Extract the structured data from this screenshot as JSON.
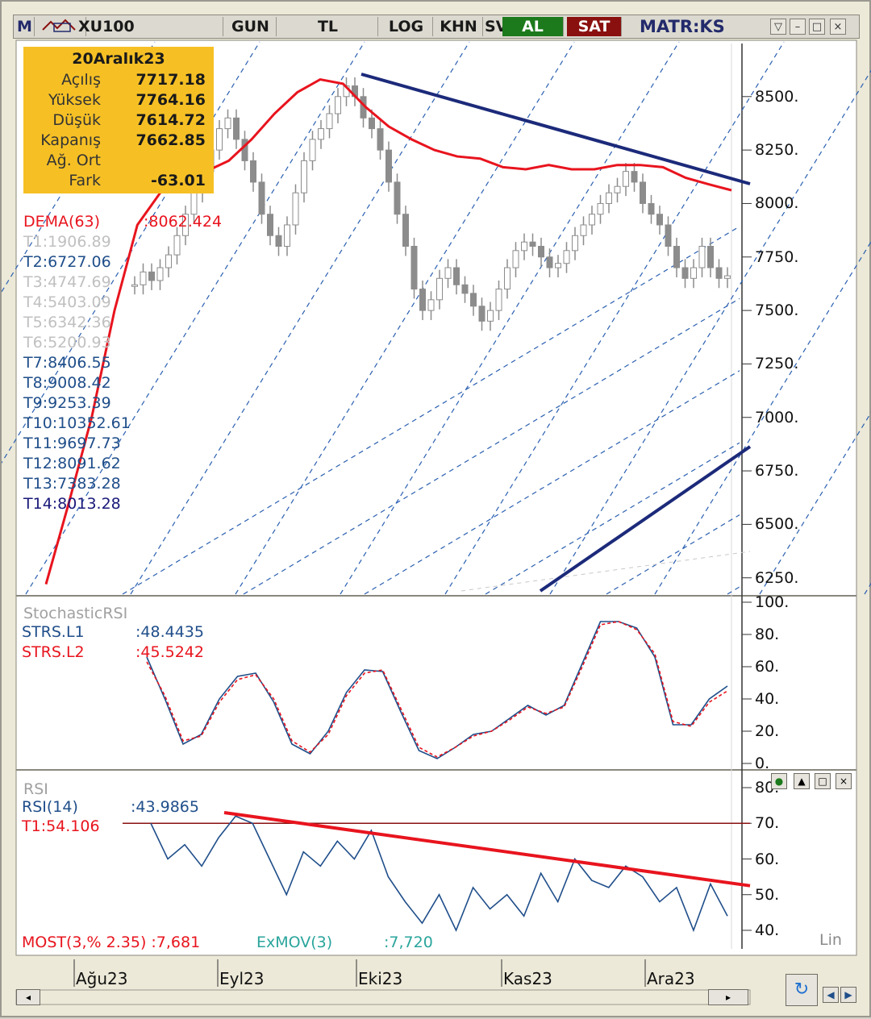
{
  "toolbar": {
    "logo": "M",
    "symbol": "XU100",
    "period": "GUN",
    "currency": "TL",
    "log": "LOG",
    "khn": "KHN",
    "sv": "SV",
    "buy": "AL",
    "sell": "SAT",
    "brand": "MATR:KS"
  },
  "info": {
    "date": "20Aralık23",
    "open_label": "Açılış",
    "open": "7717.18",
    "high_label": "Yüksek",
    "high": "7764.16",
    "low_label": "Düşük",
    "low": "7614.72",
    "close_label": "Kapanış",
    "close": "7662.85",
    "wavg_label": "Ağ. Ort",
    "wavg": "",
    "diff_label": "Fark",
    "diff": "-63.01"
  },
  "overlay_labels": {
    "dema": "DEMA(63)",
    "dema_val": ":8062.424",
    "trend": [
      "T1:1906.89",
      "T2:6727.06",
      "T3:4747.69",
      "T4:5403.09",
      "T5:6342.36",
      "T6:5200.93",
      "T7:8406.55",
      "T8:9008.42",
      "T9:9253.39",
      "T10:10352.61",
      "T11:9697.73",
      "T12:8091.62",
      "T13:7383.28",
      "T14:8013.28"
    ],
    "trend_colors": [
      "#c0c0c0",
      "#1f4e8a",
      "#c0c0c0",
      "#c0c0c0",
      "#c0c0c0",
      "#c0c0c0",
      "#1f4e8a",
      "#1f4e8a",
      "#1f4e8a",
      "#1f4e8a",
      "#1f4e8a",
      "#1f4e8a",
      "#1f4e8a",
      "#1a1a7a"
    ]
  },
  "stoch": {
    "title": "StochasticRSI",
    "l1": "STRS.L1",
    "l1_val": ":48.4435",
    "l2": "STRS.L2",
    "l2_val": ":45.5242"
  },
  "rsi": {
    "title": "RSI",
    "label": "RSI(14)",
    "val": ":43.9865",
    "t1": "T1:54.106",
    "most": "MOST(3,% 2.35) :7,681",
    "exmov": "ExMOV(3)",
    "exmov_val": ":7,720",
    "scale": "Lin"
  },
  "x_labels": [
    "Ağu23",
    "Eyl23",
    "Eki23",
    "Kas23",
    "Ara23"
  ],
  "colors": {
    "dema": "#e8141e",
    "trend": "#1c2a7a",
    "candle": "#8c8c8c",
    "stoch_l1": "#1f4e8a",
    "stoch_l2": "#e8141e",
    "rsi": "#1f4e8a",
    "info_bg": "#f6c025"
  },
  "chart_data": [
    {
      "type": "candlestick",
      "title": "XU100",
      "ylim": [
        6200,
        8650
      ],
      "yticks": [
        "8500.",
        "8250.",
        "8000.",
        "7750.",
        "7500.",
        "7250.",
        "7000.",
        "6750.",
        "6500.",
        "6250."
      ],
      "ytick_values": [
        8500,
        8250,
        8000,
        7750,
        7500,
        7250,
        7000,
        6750,
        6500,
        6250
      ],
      "close_series": [
        7620,
        7680,
        7640,
        7700,
        7760,
        7850,
        7950,
        8050,
        8150,
        8250,
        8350,
        8400,
        8300,
        8200,
        8100,
        7950,
        7850,
        7800,
        7900,
        8050,
        8200,
        8300,
        8350,
        8420,
        8500,
        8550,
        8500,
        8400,
        8350,
        8250,
        8100,
        7950,
        7800,
        7600,
        7500,
        7550,
        7650,
        7700,
        7620,
        7580,
        7520,
        7450,
        7500,
        7600,
        7700,
        7780,
        7820,
        7800,
        7750,
        7700,
        7720,
        7780,
        7850,
        7900,
        7950,
        8000,
        8050,
        8080,
        8150,
        8100,
        8000,
        7950,
        7900,
        7800,
        7700,
        7650,
        7700,
        7800,
        7700,
        7650,
        7662
      ],
      "dema_series": [
        6220,
        6600,
        7000,
        7500,
        7900,
        8050,
        8120,
        8150,
        8200,
        8300,
        8420,
        8520,
        8580,
        8560,
        8450,
        8360,
        8300,
        8250,
        8220,
        8210,
        8170,
        8160,
        8180,
        8160,
        8160,
        8180,
        8180,
        8170,
        8120,
        8090,
        8062
      ]
    },
    {
      "type": "line",
      "title": "StochasticRSI",
      "ylim": [
        0,
        100
      ],
      "yticks": [
        "100.",
        "80.",
        "60.",
        "40.",
        "20.",
        "0."
      ],
      "series": [
        {
          "name": "STRS.L1",
          "values": [
            66,
            40,
            12,
            18,
            40,
            54,
            56,
            38,
            12,
            6,
            20,
            44,
            58,
            57,
            32,
            8,
            3,
            10,
            18,
            20,
            28,
            36,
            30,
            36,
            62,
            88,
            88,
            84,
            66,
            24,
            24,
            40,
            48
          ]
        },
        {
          "name": "STRS.L2",
          "values": [
            63,
            42,
            14,
            17,
            38,
            52,
            55,
            40,
            14,
            7,
            18,
            42,
            56,
            58,
            34,
            10,
            4,
            10,
            17,
            20,
            27,
            35,
            31,
            35,
            60,
            86,
            88,
            83,
            68,
            26,
            23,
            38,
            45
          ]
        }
      ]
    },
    {
      "type": "line",
      "title": "RSI",
      "ylim": [
        35,
        85
      ],
      "yticks": [
        "80.",
        "70.",
        "60.",
        "50.",
        "40."
      ],
      "series": [
        {
          "name": "RSI(14)",
          "values": [
            70,
            60,
            64,
            58,
            66,
            72,
            70,
            60,
            50,
            62,
            58,
            65,
            60,
            68,
            55,
            48,
            42,
            50,
            40,
            52,
            46,
            50,
            44,
            56,
            48,
            60,
            54,
            52,
            58,
            55,
            48,
            52,
            40,
            53,
            44
          ]
        }
      ]
    }
  ]
}
